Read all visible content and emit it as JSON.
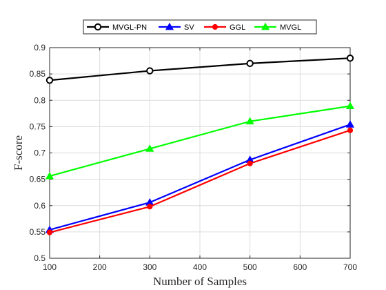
{
  "chart_data": {
    "type": "line",
    "title": "",
    "xlabel": "Number of Samples",
    "ylabel": "F-score",
    "xlim": [
      100,
      700
    ],
    "ylim": [
      0.5,
      0.9
    ],
    "xticks": [
      100,
      200,
      300,
      400,
      500,
      600,
      700
    ],
    "yticks": [
      0.5,
      0.55,
      0.6,
      0.65,
      0.7,
      0.75,
      0.8,
      0.85,
      0.9
    ],
    "grid": true,
    "legend_placement": "top-center",
    "x": [
      100,
      300,
      500,
      700
    ],
    "series": [
      {
        "name": "MVGL-PN",
        "values": [
          0.838,
          0.856,
          0.87,
          0.88
        ],
        "color": "#000000",
        "marker": "open-circle"
      },
      {
        "name": "SV",
        "values": [
          0.554,
          0.606,
          0.687,
          0.754
        ],
        "color": "#0000ff",
        "marker": "filled-triangle"
      },
      {
        "name": "GGL",
        "values": [
          0.549,
          0.598,
          0.68,
          0.743
        ],
        "color": "#ff0000",
        "marker": "filled-circle"
      },
      {
        "name": "MVGL",
        "values": [
          0.656,
          0.708,
          0.76,
          0.789
        ],
        "color": "#00ff00",
        "marker": "filled-triangle"
      }
    ]
  }
}
